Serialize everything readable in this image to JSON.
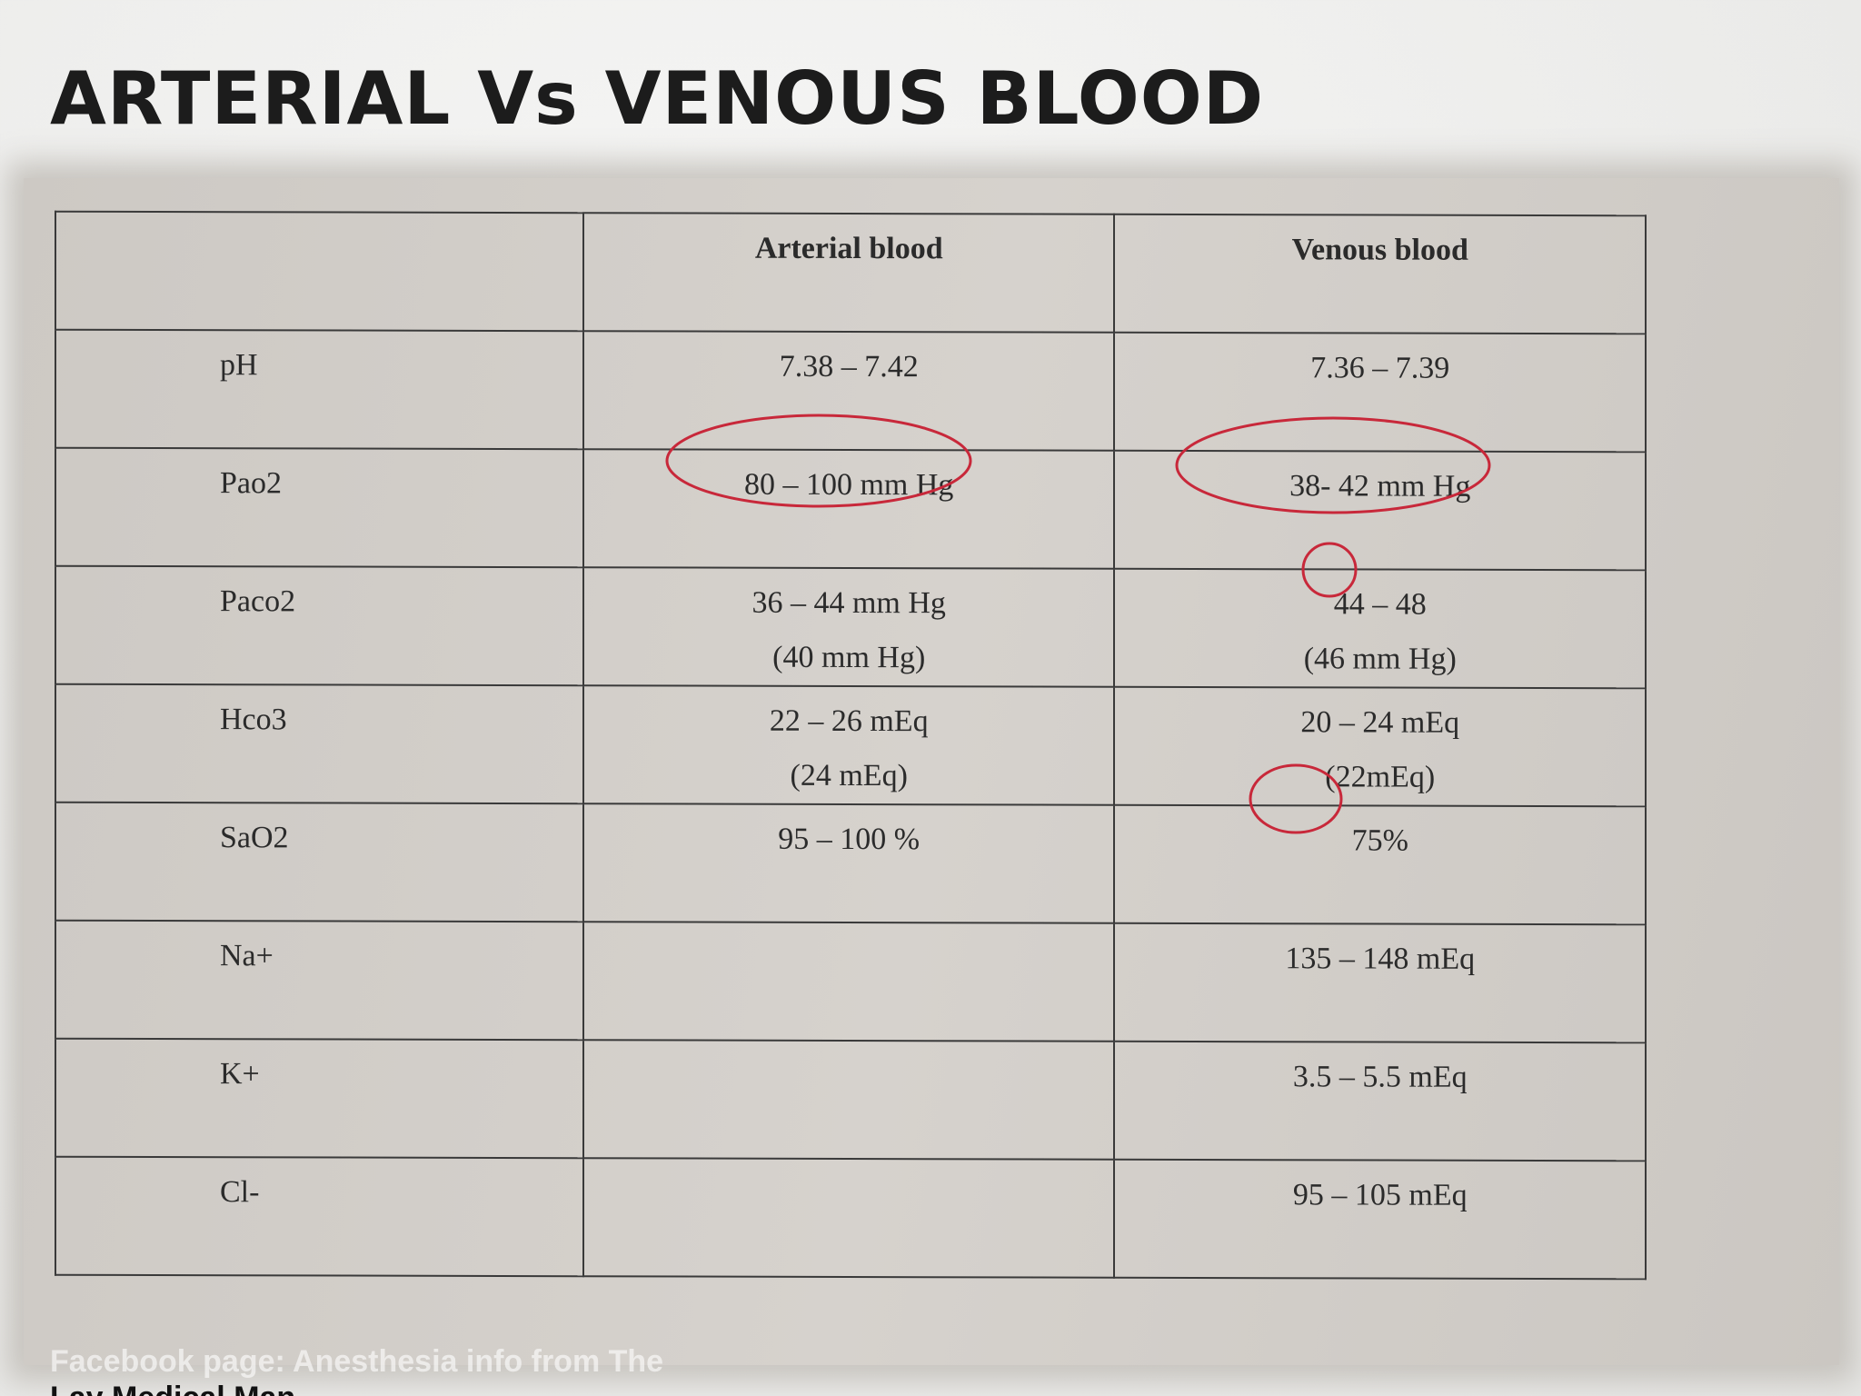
{
  "title": "ARTERIAL Vs VENOUS BLOOD",
  "table": {
    "header": [
      "Arterial blood",
      "Venous blood"
    ],
    "rows": [
      {
        "label": "pH",
        "arterial": [
          "7.38 – 7.42"
        ],
        "venous": [
          "7.36 – 7.39"
        ]
      },
      {
        "label": "Pao2",
        "arterial": [
          "80 – 100 mm Hg"
        ],
        "venous": [
          "38- 42 mm Hg"
        ]
      },
      {
        "label": "Paco2",
        "arterial": [
          "36 – 44 mm Hg",
          "(40 mm Hg)"
        ],
        "venous": [
          "44 – 48",
          "(46 mm Hg)"
        ]
      },
      {
        "label": "Hco3",
        "arterial": [
          "22 – 26 mEq",
          "(24 mEq)"
        ],
        "venous": [
          "20 – 24 mEq",
          "(22mEq)"
        ]
      },
      {
        "label": "SaO2",
        "arterial": [
          "95 – 100 %"
        ],
        "venous": [
          "75%"
        ]
      },
      {
        "label": "Na+",
        "venous": [
          "135 – 148 mEq"
        ]
      },
      {
        "label": "K+",
        "venous": [
          "3.5 – 5.5 mEq"
        ]
      },
      {
        "label": "Cl-",
        "venous": [
          "95 – 105 mEq"
        ]
      }
    ]
  },
  "footer": [
    "Facebook page: Anesthesia info from The",
    "Lay Medical Man"
  ]
}
